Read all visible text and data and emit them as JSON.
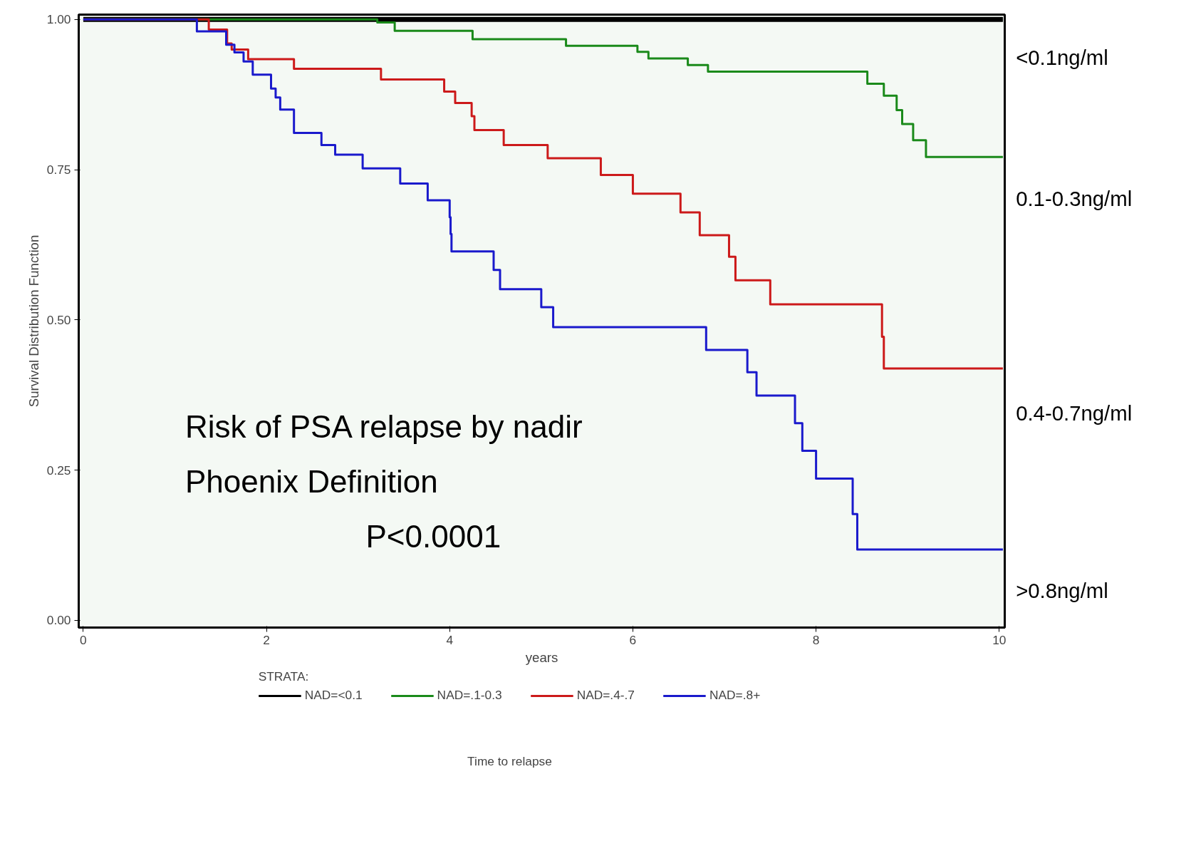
{
  "chart_data": {
    "type": "step",
    "xlabel": "years",
    "ylabel": "Survival Distribution Function",
    "legend_title": "STRATA:",
    "legend": "bottom",
    "grid": false,
    "xlim": [
      -0.05,
      10.06
    ],
    "ylim": [
      -0.012,
      1.008
    ],
    "xticks": [
      0,
      2,
      4,
      6,
      8,
      10
    ],
    "yticks": [
      {
        "value": 0,
        "label": "0.00"
      },
      {
        "value": 0.25,
        "label": "0.25"
      },
      {
        "value": 0.5,
        "label": "0.50"
      },
      {
        "value": 0.75,
        "label": "0.75"
      },
      {
        "value": 1,
        "label": "1.00"
      }
    ],
    "series": [
      {
        "name": "NAD=<0.1",
        "color": "#000000",
        "x": [
          0,
          10.04
        ],
        "values": [
          1,
          1
        ]
      },
      {
        "name": "NAD=.1-0.3",
        "color": "#1a8a1a",
        "x": [
          0,
          3.21,
          3.4,
          4.25,
          5.27,
          6.05,
          6.17,
          6.6,
          6.82,
          8.56,
          8.74,
          8.88,
          8.94,
          9.06,
          9.2,
          10.04
        ],
        "values": [
          1,
          0.995,
          0.981,
          0.967,
          0.956,
          0.946,
          0.935,
          0.924,
          0.913,
          0.893,
          0.873,
          0.849,
          0.826,
          0.799,
          0.771,
          0.771
        ]
      },
      {
        "name": "NAD=.4-.7",
        "color": "#cc1a1a",
        "x": [
          0,
          1.37,
          1.57,
          1.62,
          1.8,
          2.3,
          3.25,
          3.94,
          4.06,
          4.24,
          4.27,
          4.59,
          5.07,
          5.65,
          6.0,
          6.52,
          6.73,
          7.05,
          7.12,
          7.5,
          8.72,
          8.74,
          10.04
        ],
        "values": [
          1,
          0.983,
          0.96,
          0.95,
          0.934,
          0.918,
          0.9,
          0.88,
          0.861,
          0.839,
          0.816,
          0.791,
          0.769,
          0.741,
          0.71,
          0.679,
          0.641,
          0.605,
          0.566,
          0.526,
          0.472,
          0.419,
          0.419
        ]
      },
      {
        "name": "NAD=.8+",
        "color": "#1a1acc",
        "x": [
          0,
          1.24,
          1.56,
          1.65,
          1.75,
          1.85,
          2.05,
          2.1,
          2.15,
          2.3,
          2.6,
          2.75,
          3.05,
          3.46,
          3.76,
          4.0,
          4.01,
          4.02,
          4.48,
          4.55,
          5.0,
          5.13,
          6.8,
          7.25,
          7.35,
          7.77,
          7.85,
          8.0,
          8.4,
          8.45,
          10.04
        ],
        "values": [
          1,
          0.98,
          0.958,
          0.945,
          0.93,
          0.908,
          0.885,
          0.87,
          0.85,
          0.811,
          0.791,
          0.775,
          0.752,
          0.727,
          0.699,
          0.671,
          0.643,
          0.614,
          0.583,
          0.551,
          0.521,
          0.488,
          0.45,
          0.413,
          0.374,
          0.328,
          0.282,
          0.236,
          0.177,
          0.118,
          0.118
        ]
      }
    ],
    "annotations": [
      "<0.1ng/ml",
      "0.1-0.3ng/ml",
      "0.4-0.7ng/ml",
      ">0.8ng/ml",
      "Risk of PSA relapse by nadir",
      "Phoenix Definition",
      "P<0.0001",
      "Time to relapse"
    ]
  }
}
